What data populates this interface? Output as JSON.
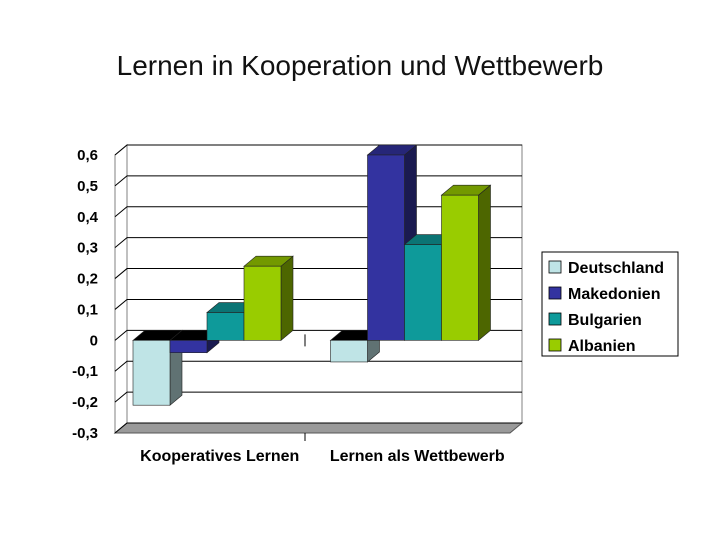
{
  "page": {
    "title": "Lernen in Kooperation und Wettbewerb"
  },
  "chart_data": {
    "type": "bar",
    "title": "Lernen in Kooperation und Wettbewerb",
    "categories": [
      "Kooperatives Lernen",
      "Lernen als Wettbewerb"
    ],
    "series": [
      {
        "name": "Deutschland",
        "values": [
          -0.21,
          -0.07
        ],
        "color": "#bfe4e6"
      },
      {
        "name": "Makedonien",
        "values": [
          -0.04,
          0.6
        ],
        "color": "#3333a0"
      },
      {
        "name": "Bulgarien",
        "values": [
          0.09,
          0.31
        ],
        "color": "#0e9a9a"
      },
      {
        "name": "Albanien",
        "values": [
          0.24,
          0.47
        ],
        "color": "#99cc00"
      }
    ],
    "ylim": [
      -0.3,
      0.6
    ],
    "yticks": [
      "0,6",
      "0,5",
      "0,4",
      "0,3",
      "0,2",
      "0,1",
      "0",
      "-0,1",
      "-0,2",
      "-0,3"
    ],
    "ytick_values": [
      0.6,
      0.5,
      0.4,
      0.3,
      0.2,
      0.1,
      0,
      -0.1,
      -0.2,
      -0.3
    ],
    "grid": true,
    "legend_position": "right",
    "three_d": true
  }
}
